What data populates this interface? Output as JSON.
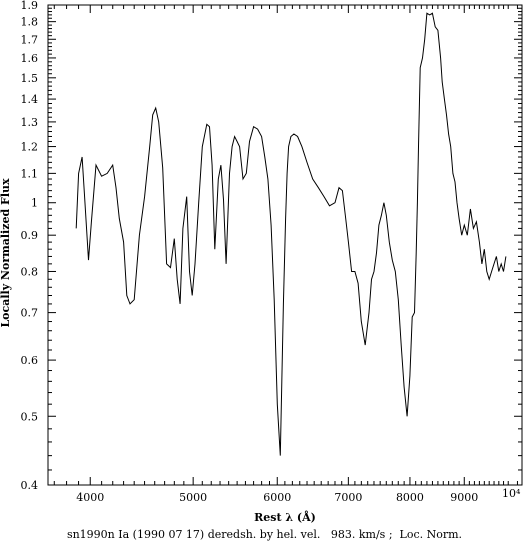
{
  "chart_data": {
    "type": "line",
    "title": "",
    "xlabel": "Rest λ (Å)",
    "ylabel": "Locally Normalized Flux",
    "xscale": "log",
    "yscale": "log",
    "xlim": [
      3650,
      10200
    ],
    "ylim": [
      0.4,
      1.9
    ],
    "xticks_major": [
      4000,
      5000,
      6000,
      7000,
      8000,
      9000
    ],
    "x_multiplier_label": "10⁴",
    "yticks_major": [
      0.4,
      0.5,
      0.6,
      0.7,
      0.8,
      0.9,
      1,
      1.1,
      1.2,
      1.3,
      1.4,
      1.5,
      1.6,
      1.7,
      1.8,
      1.9
    ],
    "grid": false,
    "legend": "none",
    "line_color": "#000000",
    "series": [
      {
        "x": [
          3880,
          3900,
          3930,
          3950,
          3985,
          4010,
          4050,
          4100,
          4150,
          4200,
          4230,
          4260,
          4300,
          4330,
          4360,
          4400,
          4450,
          4500,
          4550,
          4580,
          4610,
          4640,
          4680,
          4720,
          4760,
          4800,
          4830,
          4860,
          4890,
          4930,
          4960,
          4990,
          5020,
          5060,
          5100,
          5150,
          5180,
          5210,
          5240,
          5280,
          5310,
          5340,
          5370,
          5410,
          5440,
          5470,
          5500,
          5530,
          5570,
          5610,
          5650,
          5700,
          5750,
          5800,
          5840,
          5880,
          5920,
          5960,
          6000,
          6040,
          6080,
          6110,
          6130,
          6150,
          6180,
          6220,
          6270,
          6330,
          6400,
          6480,
          6560,
          6640,
          6720,
          6800,
          6860,
          6910,
          6960,
          7000,
          7050,
          7100,
          7150,
          7200,
          7260,
          7320,
          7360,
          7400,
          7440,
          7480,
          7520,
          7560,
          7600,
          7650,
          7700,
          7750,
          7800,
          7850,
          7900,
          7950,
          8000,
          8040,
          8080,
          8110,
          8130,
          8150,
          8180,
          8220,
          8260,
          8300,
          8350,
          8400,
          8450,
          8500,
          8550,
          8580,
          8620,
          8660,
          8700,
          8740,
          8780,
          8820,
          8860,
          8900,
          8950,
          9000,
          9060,
          9120,
          9180,
          9240,
          9300,
          9350,
          9400,
          9450,
          9500,
          9550,
          9600,
          9650,
          9700,
          9750,
          9800,
          9850
        ],
        "y": [
          0.92,
          1.1,
          1.16,
          1.03,
          0.83,
          0.94,
          1.13,
          1.09,
          1.1,
          1.13,
          1.05,
          0.95,
          0.88,
          0.74,
          0.72,
          0.73,
          0.9,
          1.02,
          1.2,
          1.33,
          1.36,
          1.3,
          1.12,
          0.82,
          0.81,
          0.89,
          0.78,
          0.72,
          0.92,
          1.02,
          0.8,
          0.74,
          0.82,
          1.0,
          1.2,
          1.29,
          1.28,
          1.13,
          0.86,
          1.08,
          1.13,
          1.01,
          0.82,
          1.1,
          1.2,
          1.24,
          1.22,
          1.2,
          1.08,
          1.1,
          1.22,
          1.28,
          1.27,
          1.24,
          1.16,
          1.08,
          0.93,
          0.73,
          0.52,
          0.44,
          0.72,
          0.95,
          1.1,
          1.2,
          1.24,
          1.25,
          1.24,
          1.2,
          1.14,
          1.08,
          1.05,
          1.02,
          0.99,
          1.0,
          1.05,
          1.04,
          0.95,
          0.88,
          0.8,
          0.8,
          0.77,
          0.68,
          0.63,
          0.7,
          0.78,
          0.8,
          0.85,
          0.93,
          0.96,
          1.0,
          0.96,
          0.88,
          0.83,
          0.8,
          0.73,
          0.63,
          0.55,
          0.5,
          0.57,
          0.69,
          0.7,
          0.85,
          1.0,
          1.2,
          1.55,
          1.6,
          1.7,
          1.85,
          1.84,
          1.85,
          1.77,
          1.75,
          1.6,
          1.48,
          1.4,
          1.33,
          1.25,
          1.2,
          1.1,
          1.07,
          1.0,
          0.95,
          0.9,
          0.93,
          0.9,
          0.98,
          0.92,
          0.94,
          0.88,
          0.82,
          0.86,
          0.8,
          0.78,
          0.8,
          0.82,
          0.84,
          0.8,
          0.82,
          0.8,
          0.84
        ]
      }
    ]
  },
  "caption": "sn1990n Ia (1990 07 17) deredsh. by hel. vel.   983. km/s ;  Loc. Norm."
}
